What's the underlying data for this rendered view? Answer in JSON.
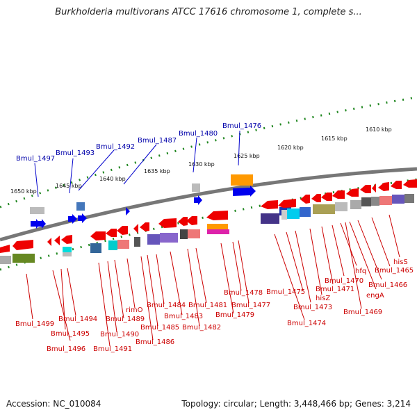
{
  "header": {
    "title": "Burkholderia multivorans ATCC 17616 chromosome 1, complete s..."
  },
  "footer": {
    "accession": "Accession: NC_010084",
    "topology": "Topology: circular; Length: 3,448,466 bp; Genes: 3,214"
  },
  "scale_labels": [
    "1650 kbp",
    "1645 kbp",
    "1640 kbp",
    "1635 kbp",
    "1630 kbp",
    "1625 kbp",
    "1620 kbp",
    "1615 kbp",
    "1610 kbp"
  ],
  "labels_top": [
    "Bmul_1497",
    "Bmul_1493",
    "Bmul_1492",
    "Bmul_1487",
    "Bmul_1480",
    "Bmul_1476"
  ],
  "labels_bottom": [
    "Bmul_1499",
    "Bmul_1494",
    "Bmul_1495",
    "Bmul_1496",
    "Bmul_1491",
    "Bmul_1490",
    "Bmul_1489",
    "rimO",
    "Bmul_1486",
    "Bmul_1485",
    "Bmul_1484",
    "Bmul_1483",
    "Bmul_1482",
    "Bmul_1481",
    "Bmul_1479",
    "Bmul_1478",
    "Bmul_1477",
    "Bmul_1475",
    "Bmul_1474",
    "Bmul_1473",
    "hisZ",
    "Bmul_1471",
    "Bmul_1470",
    "hfq",
    "Bmul_1469",
    "engA",
    "Bmul_1466",
    "Bmul_1465",
    "hisS"
  ],
  "colors": {
    "forward_gene": "#0000ee",
    "reverse_gene": "#ee0000",
    "backbone": "#777777",
    "scale_ticks": "#228822",
    "label_forward": "#0000aa",
    "label_reverse": "#cc0000"
  }
}
